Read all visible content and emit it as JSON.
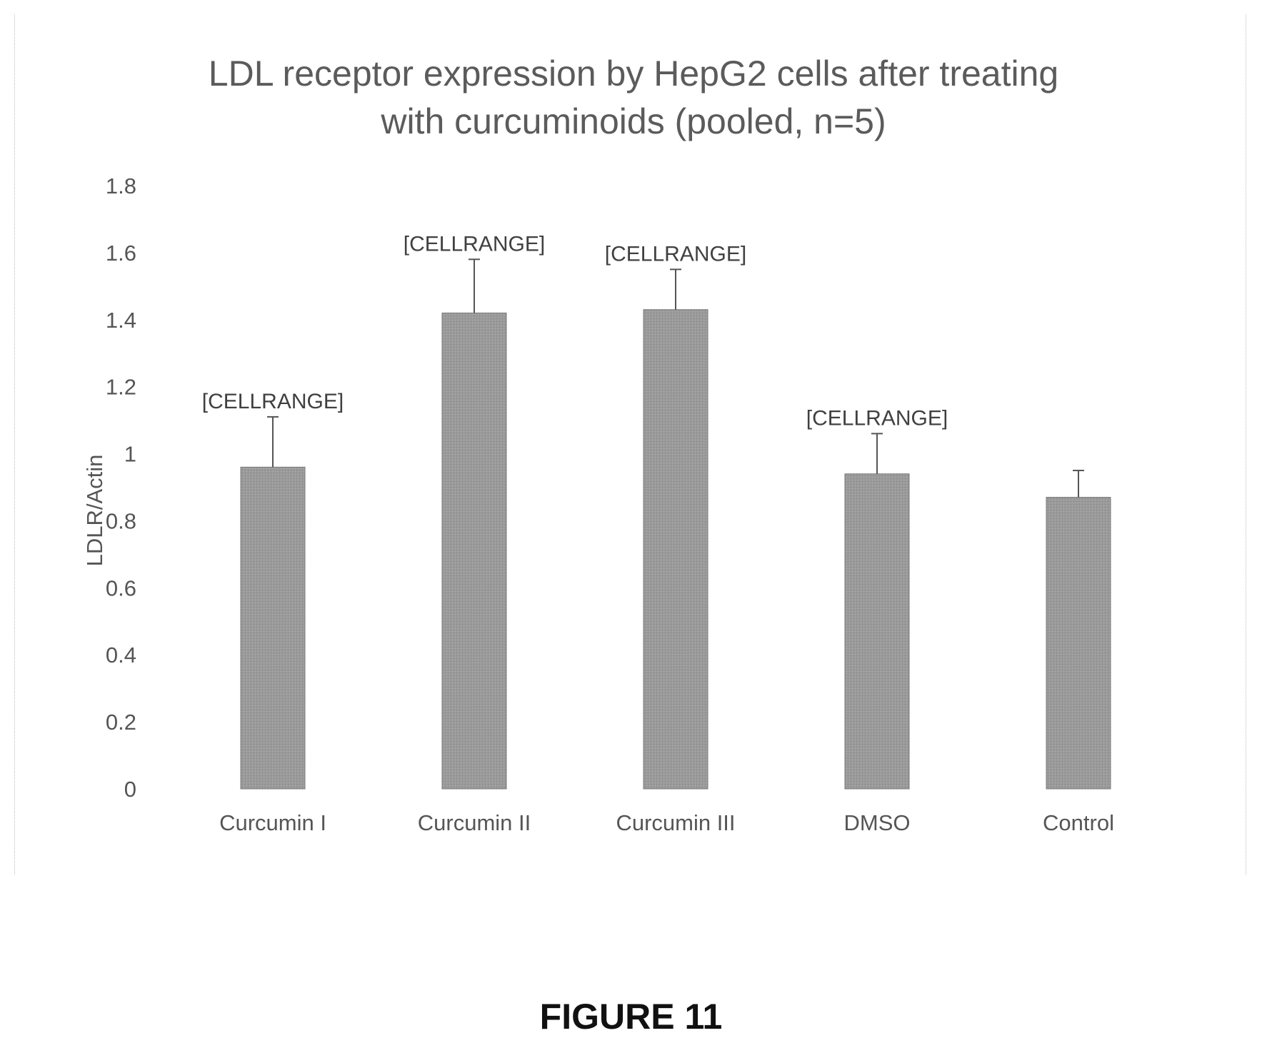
{
  "chart_data": {
    "type": "bar",
    "title_lines": [
      "LDL receptor expression by HepG2 cells after treating",
      "with curcuminoids (pooled, n=5)"
    ],
    "xlabel": "",
    "ylabel": "LDLR/Actin",
    "ylim": [
      0,
      1.8
    ],
    "yticks": [
      0,
      0.2,
      0.4,
      0.6,
      0.8,
      1,
      1.2,
      1.4,
      1.6,
      1.8
    ],
    "categories": [
      "Curcumin I",
      "Curcumin II",
      "Curcumin III",
      "DMSO",
      "Control"
    ],
    "values": [
      0.96,
      1.42,
      1.43,
      0.94,
      0.87
    ],
    "error_upper": [
      0.15,
      0.16,
      0.12,
      0.12,
      0.08
    ],
    "data_labels": [
      "[CELLRANGE]",
      "[CELLRANGE]",
      "[CELLRANGE]",
      "[CELLRANGE]",
      null
    ],
    "grid": false,
    "legend": "none",
    "bar_color": "#9a9a9a"
  },
  "figure_label": "FIGURE 11"
}
